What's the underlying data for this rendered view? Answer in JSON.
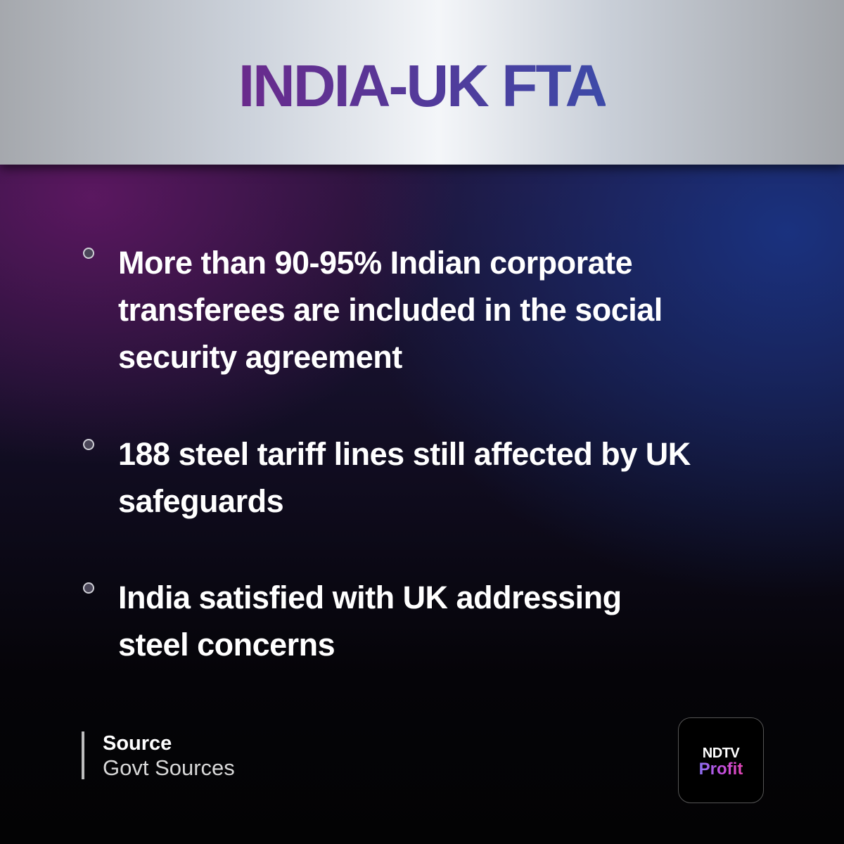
{
  "header": {
    "title": "INDIA-UK FTA"
  },
  "bullets": [
    {
      "lines": [
        "More than 90-95% Indian corporate",
        "transferees are included in the social",
        "security agreement"
      ]
    },
    {
      "lines": [
        "188 steel tariff lines still affected by UK",
        "safeguards"
      ]
    },
    {
      "lines": [
        "India satisfied with UK addressing",
        "steel concerns"
      ]
    }
  ],
  "source": {
    "label": "Source",
    "value": "Govt Sources"
  },
  "logo": {
    "top": "NDTV",
    "bottom": "Profit"
  }
}
